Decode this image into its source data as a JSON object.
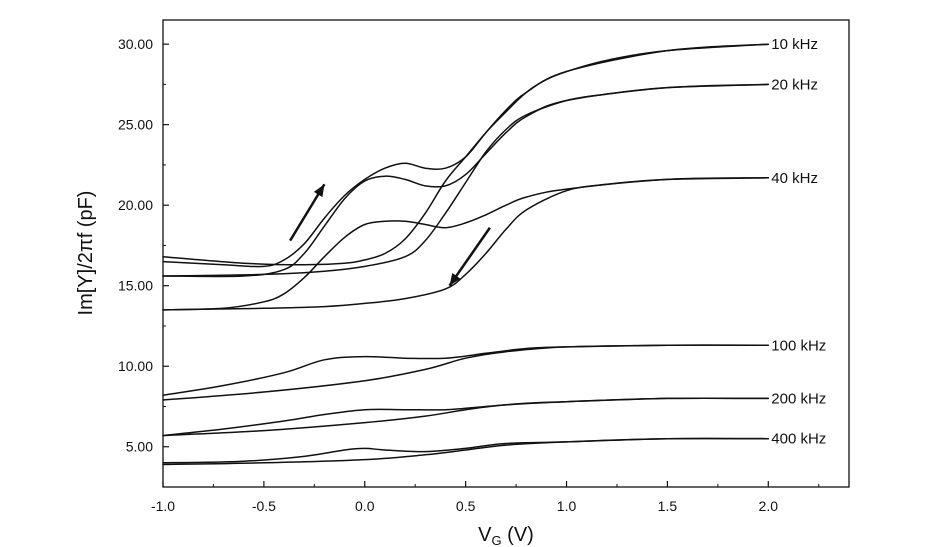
{
  "chart_data": {
    "type": "line",
    "title": "",
    "xlabel": "V",
    "xlabel_sub": "G",
    "xlabel_unit": " (V)",
    "ylabel": "Im[Y]/2πf (pF)",
    "xlim": [
      -1.0,
      2.4
    ],
    "ylim": [
      2.5,
      31.5
    ],
    "xticks": [
      -1.0,
      -0.5,
      0.0,
      0.5,
      1.0,
      1.5,
      2.0
    ],
    "xtick_labels": [
      "-1.0",
      "-0.5",
      "0.0",
      "0.5",
      "1.0",
      "1.5",
      "2.0"
    ],
    "yticks": [
      5,
      10,
      15,
      20,
      25,
      30
    ],
    "ytick_labels": [
      "5.00",
      "10.00",
      "15.00",
      "20.00",
      "25.00",
      "30.00"
    ],
    "grid": false,
    "legend": "labels at right end of each series",
    "line_color": "#111111",
    "series": [
      {
        "name": "10 kHz",
        "branch": "up",
        "x": [
          -1.0,
          -0.6,
          -0.3,
          -0.1,
          0.0,
          0.1,
          0.2,
          0.3,
          0.4,
          0.5,
          0.6,
          0.7,
          0.8,
          0.9,
          1.0,
          1.2,
          1.5,
          2.0
        ],
        "y": [
          16.8,
          16.4,
          16.3,
          16.4,
          16.6,
          17.0,
          17.9,
          19.5,
          21.5,
          23.0,
          24.5,
          25.8,
          27.0,
          27.8,
          28.3,
          29.0,
          29.6,
          30.0
        ]
      },
      {
        "name": "10 kHz",
        "branch": "down",
        "x": [
          -1.0,
          -0.7,
          -0.5,
          -0.4,
          -0.3,
          -0.2,
          -0.1,
          0.0,
          0.1,
          0.2,
          0.3,
          0.4,
          0.5,
          0.6,
          0.7,
          0.8,
          1.0,
          1.5,
          2.0
        ],
        "y": [
          16.5,
          16.3,
          16.2,
          16.6,
          17.6,
          19.2,
          20.6,
          21.6,
          22.3,
          22.6,
          22.3,
          22.3,
          23.0,
          24.5,
          25.9,
          27.0,
          28.3,
          29.6,
          30.0
        ]
      },
      {
        "name": "20 kHz",
        "branch": "up",
        "x": [
          -1.0,
          -0.5,
          -0.2,
          0.0,
          0.2,
          0.3,
          0.4,
          0.5,
          0.6,
          0.7,
          0.8,
          1.0,
          1.2,
          1.5,
          2.0
        ],
        "y": [
          15.6,
          15.7,
          15.9,
          16.2,
          16.8,
          17.8,
          19.5,
          21.4,
          23.3,
          24.7,
          25.6,
          26.5,
          26.9,
          27.3,
          27.5
        ]
      },
      {
        "name": "20 kHz",
        "branch": "down",
        "x": [
          -1.0,
          -0.6,
          -0.4,
          -0.3,
          -0.2,
          -0.1,
          0.0,
          0.1,
          0.2,
          0.3,
          0.4,
          0.5,
          0.6,
          0.7,
          0.8,
          1.0,
          1.5,
          2.0
        ],
        "y": [
          15.6,
          15.6,
          16.0,
          17.0,
          18.7,
          20.4,
          21.5,
          21.8,
          21.6,
          21.2,
          21.2,
          21.9,
          23.2,
          24.5,
          25.5,
          26.5,
          27.3,
          27.5
        ]
      },
      {
        "name": "40 kHz",
        "branch": "up",
        "x": [
          -1.0,
          -0.5,
          -0.2,
          0.0,
          0.2,
          0.4,
          0.5,
          0.6,
          0.7,
          0.8,
          1.0,
          1.2,
          1.5,
          2.0
        ],
        "y": [
          13.5,
          13.6,
          13.7,
          13.9,
          14.2,
          14.8,
          15.7,
          17.0,
          18.5,
          19.7,
          20.9,
          21.3,
          21.6,
          21.7
        ]
      },
      {
        "name": "40 kHz",
        "branch": "down",
        "x": [
          -1.0,
          -0.7,
          -0.5,
          -0.4,
          -0.3,
          -0.2,
          -0.1,
          0.0,
          0.1,
          0.2,
          0.3,
          0.4,
          0.5,
          0.6,
          0.7,
          0.8,
          1.0,
          1.5,
          2.0
        ],
        "y": [
          13.5,
          13.6,
          14.0,
          14.5,
          15.5,
          16.8,
          18.0,
          18.8,
          19.0,
          19.0,
          18.8,
          18.6,
          18.9,
          19.4,
          20.0,
          20.5,
          21.0,
          21.6,
          21.7
        ]
      },
      {
        "name": "100 kHz",
        "branch": "up",
        "x": [
          -1.0,
          -0.5,
          0.0,
          0.3,
          0.5,
          0.7,
          1.0,
          1.5,
          2.0
        ],
        "y": [
          7.9,
          8.4,
          9.1,
          9.8,
          10.5,
          10.9,
          11.2,
          11.3,
          11.3
        ]
      },
      {
        "name": "100 kHz",
        "branch": "down",
        "x": [
          -1.0,
          -0.7,
          -0.4,
          -0.2,
          0.0,
          0.2,
          0.4,
          0.6,
          0.8,
          1.0,
          1.5,
          2.0
        ],
        "y": [
          8.2,
          8.8,
          9.6,
          10.4,
          10.6,
          10.5,
          10.5,
          10.8,
          11.1,
          11.2,
          11.3,
          11.3
        ]
      },
      {
        "name": "200 kHz",
        "branch": "up",
        "x": [
          -1.0,
          -0.5,
          0.0,
          0.3,
          0.5,
          0.7,
          1.0,
          1.5,
          2.0
        ],
        "y": [
          5.7,
          6.0,
          6.5,
          6.9,
          7.3,
          7.6,
          7.8,
          8.0,
          8.0
        ]
      },
      {
        "name": "200 kHz",
        "branch": "down",
        "x": [
          -1.0,
          -0.7,
          -0.4,
          -0.2,
          0.0,
          0.2,
          0.4,
          0.6,
          0.8,
          1.0,
          1.5,
          2.0
        ],
        "y": [
          5.7,
          6.1,
          6.6,
          7.0,
          7.3,
          7.3,
          7.3,
          7.5,
          7.7,
          7.8,
          8.0,
          8.0
        ]
      },
      {
        "name": "400 kHz",
        "branch": "up",
        "x": [
          -1.0,
          -0.5,
          0.0,
          0.3,
          0.5,
          0.7,
          1.0,
          1.5,
          2.0
        ],
        "y": [
          3.9,
          4.0,
          4.2,
          4.5,
          4.8,
          5.1,
          5.3,
          5.5,
          5.5
        ]
      },
      {
        "name": "400 kHz",
        "branch": "down",
        "x": [
          -1.0,
          -0.6,
          -0.3,
          -0.1,
          0.0,
          0.1,
          0.3,
          0.5,
          0.7,
          1.0,
          1.5,
          2.0
        ],
        "y": [
          4.0,
          4.1,
          4.4,
          4.8,
          4.9,
          4.8,
          4.7,
          4.9,
          5.2,
          5.3,
          5.5,
          5.5
        ]
      }
    ],
    "series_labels": [
      {
        "text": "10 kHz",
        "y": 30.0
      },
      {
        "text": "20 kHz",
        "y": 27.5
      },
      {
        "text": "40 kHz",
        "y": 21.7
      },
      {
        "text": "100 kHz",
        "y": 11.3
      },
      {
        "text": "200 kHz",
        "y": 8.0
      },
      {
        "text": "400 kHz",
        "y": 5.5
      }
    ],
    "arrows": [
      {
        "direction": "up-right",
        "from": [
          -0.37,
          17.8
        ],
        "to": [
          -0.2,
          21.3
        ]
      },
      {
        "direction": "down-left",
        "from": [
          0.62,
          18.6
        ],
        "to": [
          0.42,
          15.0
        ]
      }
    ]
  }
}
